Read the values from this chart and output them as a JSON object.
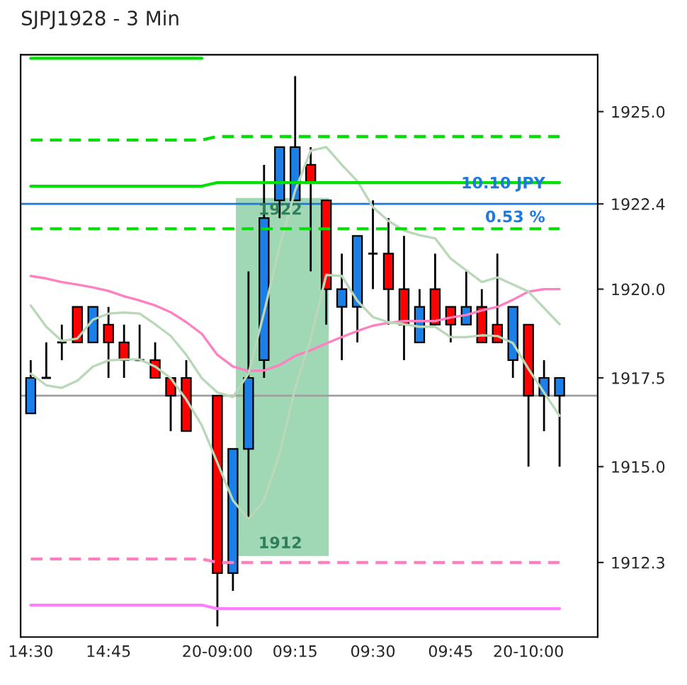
{
  "chart_data": {
    "type": "candlestick",
    "title": "SJPJ1928 - 3 Min",
    "categories": [
      "14:30",
      null,
      null,
      null,
      null,
      "14:45",
      null,
      null,
      null,
      null,
      null,
      null,
      "20-09:00",
      null,
      null,
      null,
      null,
      "09:15",
      null,
      null,
      null,
      null,
      "09:30",
      null,
      null,
      null,
      null,
      "09:45",
      null,
      null,
      null,
      null,
      "20-10:00",
      null,
      null
    ],
    "ohlc": [
      [
        1916.5,
        1918.0,
        1916.5,
        1917.5
      ],
      [
        1917.5,
        1918.5,
        1917.5,
        1917.5
      ],
      [
        1918.5,
        1919.0,
        1918.0,
        1918.5
      ],
      [
        1919.5,
        1919.5,
        1918.5,
        1918.5
      ],
      [
        1918.5,
        1919.5,
        1918.5,
        1919.5
      ],
      [
        1919.0,
        1919.5,
        1917.5,
        1918.5
      ],
      [
        1918.5,
        1919.0,
        1917.5,
        1918.0
      ],
      [
        1918.0,
        1919.0,
        1918.0,
        1918.0
      ],
      [
        1918.0,
        1918.5,
        1917.5,
        1917.5
      ],
      [
        1917.5,
        1917.5,
        1916.0,
        1917.0
      ],
      [
        1917.5,
        1918.0,
        1916.0,
        1916.0
      ],
      null,
      [
        1917.0,
        1917.0,
        1910.5,
        1912.0
      ],
      [
        1912.0,
        1915.5,
        1911.5,
        1915.5
      ],
      [
        1915.5,
        1920.5,
        1913.5,
        1917.5
      ],
      [
        1918.0,
        1923.5,
        1917.5,
        1922.0
      ],
      [
        1922.5,
        1924.0,
        1922.0,
        1924.0
      ],
      [
        1922.5,
        1926.0,
        1922.5,
        1924.0
      ],
      [
        1923.5,
        1924.0,
        1920.5,
        1923.0
      ],
      [
        1922.5,
        1922.5,
        1919.0,
        1920.0
      ],
      [
        1919.5,
        1921.0,
        1918.0,
        1920.0
      ],
      [
        1919.5,
        1921.5,
        1918.5,
        1921.5
      ],
      [
        1921.0,
        1922.5,
        1920.0,
        1921.0
      ],
      [
        1921.0,
        1922.0,
        1919.0,
        1920.0
      ],
      [
        1920.0,
        1921.5,
        1918.0,
        1919.0
      ],
      [
        1918.5,
        1920.0,
        1918.5,
        1919.5
      ],
      [
        1920.0,
        1921.0,
        1919.0,
        1919.0
      ],
      [
        1919.5,
        1919.5,
        1918.5,
        1919.0
      ],
      [
        1919.0,
        1920.5,
        1919.0,
        1919.5
      ],
      [
        1919.5,
        1920.0,
        1918.5,
        1918.5
      ],
      [
        1919.0,
        1921.0,
        1918.5,
        1918.5
      ],
      [
        1918.0,
        1919.5,
        1917.5,
        1919.5
      ],
      [
        1919.0,
        1919.0,
        1915.0,
        1917.0
      ],
      [
        1917.0,
        1918.0,
        1916.0,
        1917.5
      ],
      [
        1917.0,
        1917.5,
        1915.0,
        1917.5
      ]
    ],
    "colors": [
      "#1a7fe8",
      "#000000",
      "#000000",
      "#ff0000",
      "#1a7fe8",
      "#ff0000",
      "#ff0000",
      "#000000",
      "#ff0000",
      "#ff0000",
      "#ff0000",
      null,
      "#ff0000",
      "#1a7fe8",
      "#1a7fe8",
      "#1a7fe8",
      "#1a7fe8",
      "#1a7fe8",
      "#ff0000",
      "#ff0000",
      "#1a7fe8",
      "#1a7fe8",
      "#000000",
      "#ff0000",
      "#ff0000",
      "#1a7fe8",
      "#ff0000",
      "#ff0000",
      "#1a7fe8",
      "#ff0000",
      "#ff0000",
      "#1a7fe8",
      "#ff0000",
      "#1a7fe8",
      "#1a7fe8"
    ],
    "series": [
      {
        "type": "line",
        "color": "#ff80c0",
        "values": [
          1920.37,
          1920.3,
          1920.2,
          1920.13,
          1920.05,
          1919.95,
          1919.8,
          1919.68,
          1919.54,
          1919.35,
          1919.07,
          1918.74,
          1918.15,
          1917.82,
          1917.69,
          1917.71,
          1917.86,
          1918.12,
          1918.28,
          1918.47,
          1918.65,
          1918.82,
          1918.97,
          1919.05,
          1919.1,
          1919.1,
          1919.1,
          1919.2,
          1919.27,
          1919.4,
          1919.5,
          1919.7,
          1919.93,
          1920.0,
          1920.0
        ]
      },
      {
        "type": "line",
        "color": "#b8d8b8",
        "values": [
          1919.54,
          1918.94,
          1918.54,
          1918.61,
          1919.14,
          1919.31,
          1919.34,
          1919.31,
          1919.01,
          1918.68,
          1918.15,
          1917.49,
          1917.09,
          1916.96,
          1917.62,
          1919.34,
          1921.19,
          1922.78,
          1923.9,
          1924.0,
          1923.5,
          1923.04,
          1922.31,
          1921.92,
          1921.65,
          1921.52,
          1921.43,
          1920.86,
          1920.53,
          1920.2,
          1920.33,
          1920.13,
          1919.93,
          1919.47,
          1919.01
        ]
      },
      {
        "type": "line",
        "color": "#b8d8b8",
        "values": [
          1917.62,
          1917.29,
          1917.22,
          1917.42,
          1917.82,
          1917.99,
          1918.02,
          1918.02,
          1917.82,
          1917.49,
          1916.89,
          1916.16,
          1915.11,
          1914.05,
          1913.52,
          1914.05,
          1915.37,
          1917.22,
          1918.6,
          1920.4,
          1920.37,
          1919.67,
          1919.21,
          1919.07,
          1919.01,
          1918.94,
          1918.94,
          1918.65,
          1918.65,
          1918.7,
          1918.68,
          1918.48,
          1917.75,
          1917.09,
          1916.43
        ]
      },
      {
        "type": "line",
        "color": "#00e000",
        "line_style": "solid",
        "values": [
          1926.5,
          1926.5,
          1926.5,
          1926.5,
          1926.5,
          1926.5,
          1926.5,
          1926.5,
          1926.5,
          1926.5,
          1926.5,
          1926.5,
          null,
          null,
          null,
          null,
          null,
          null,
          null,
          null,
          null,
          null,
          null,
          null,
          null,
          null,
          null,
          null,
          null,
          null,
          null,
          null,
          null,
          null,
          null
        ]
      },
      {
        "type": "line",
        "color": "#00e000",
        "line_style": "dashed",
        "values": [
          1924.2,
          1924.2,
          1924.2,
          1924.2,
          1924.2,
          1924.2,
          1924.2,
          1924.2,
          1924.2,
          1924.2,
          1924.2,
          1924.2,
          1924.3,
          1924.3,
          1924.3,
          1924.3,
          1924.3,
          1924.3,
          1924.3,
          1924.3,
          1924.3,
          1924.3,
          1924.3,
          1924.3,
          1924.3,
          1924.3,
          1924.3,
          1924.3,
          1924.3,
          1924.3,
          1924.3,
          1924.3,
          1924.3,
          1924.3,
          1924.3
        ]
      },
      {
        "type": "line",
        "color": "#00e000",
        "line_style": "solid",
        "values": [
          1922.9,
          1922.9,
          1922.9,
          1922.9,
          1922.9,
          1922.9,
          1922.9,
          1922.9,
          1922.9,
          1922.9,
          1922.9,
          1922.9,
          1923.0,
          1923.0,
          1923.0,
          1923.0,
          1923.0,
          1923.0,
          1923.0,
          1923.0,
          1923.0,
          1923.0,
          1923.0,
          1923.0,
          1923.0,
          1923.0,
          1923.0,
          1923.0,
          1923.0,
          1923.0,
          1923.0,
          1923.0,
          1923.0,
          1923.0,
          1923.0
        ]
      },
      {
        "type": "line",
        "color": "#00e000",
        "line_style": "dashed",
        "values": [
          1921.7,
          1921.7,
          1921.7,
          1921.7,
          1921.7,
          1921.7,
          1921.7,
          1921.7,
          1921.7,
          1921.7,
          1921.7,
          1921.7,
          1921.7,
          1921.7,
          1921.7,
          1921.7,
          1921.7,
          1921.7,
          1921.7,
          1921.7,
          1921.7,
          1921.7,
          1921.7,
          1921.7,
          1921.7,
          1921.7,
          1921.7,
          1921.7,
          1921.7,
          1921.7,
          1921.7,
          1921.7,
          1921.7,
          1921.7,
          1921.7
        ]
      },
      {
        "type": "line",
        "color": "#ff80c0",
        "line_style": "dashed",
        "values": [
          1912.4,
          1912.4,
          1912.4,
          1912.4,
          1912.4,
          1912.4,
          1912.4,
          1912.4,
          1912.4,
          1912.4,
          1912.4,
          1912.4,
          1912.3,
          1912.3,
          1912.3,
          1912.3,
          1912.3,
          1912.3,
          1912.3,
          1912.3,
          1912.3,
          1912.3,
          1912.3,
          1912.3,
          1912.3,
          1912.3,
          1912.3,
          1912.3,
          1912.3,
          1912.3,
          1912.3,
          1912.3,
          1912.3,
          1912.3,
          1912.3
        ]
      },
      {
        "type": "line",
        "color": "#ff80ff",
        "line_style": "solid",
        "values": [
          1911.1,
          1911.1,
          1911.1,
          1911.1,
          1911.1,
          1911.1,
          1911.1,
          1911.1,
          1911.1,
          1911.1,
          1911.1,
          1911.1,
          1911.0,
          1911.0,
          1911.0,
          1911.0,
          1911.0,
          1911.0,
          1911.0,
          1911.0,
          1911.0,
          1911.0,
          1911.0,
          1911.0,
          1911.0,
          1911.0,
          1911.0,
          1911.0,
          1911.0,
          1911.0,
          1911.0,
          1911.0,
          1911.0,
          1911.0,
          1911.0
        ]
      }
    ],
    "ref_lines": [
      {
        "axis": "y",
        "value": 1917.0,
        "color": "#a0a0a0"
      },
      {
        "axis": "y",
        "value": 1922.4,
        "color": "#1e78e0"
      }
    ],
    "annotations": [
      "1922",
      "1912",
      "10.10 JPY",
      "0.53 %"
    ],
    "ylim": [
      1910.2,
      1926.6
    ],
    "yticks": [
      1912.3,
      {
        "value": 1915,
        "label": "1915.0"
      },
      1917.5,
      {
        "value": 1920,
        "label": "1920.0"
      },
      1922.4,
      {
        "value": 1925,
        "label": "1925.0"
      }
    ]
  }
}
